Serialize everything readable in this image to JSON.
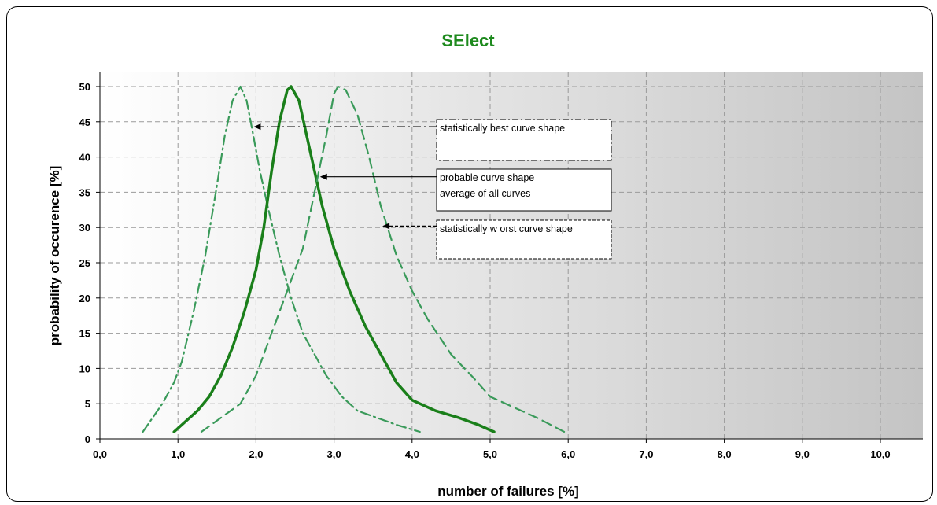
{
  "chart_data": {
    "type": "line",
    "title": "SElect",
    "title_color": "#1e8a1e",
    "xlabel": "number of failures [%]",
    "ylabel": "probability of occurence [%]",
    "xlim": [
      0,
      10.5
    ],
    "ylim": [
      0,
      52
    ],
    "x_ticks": [
      "0,0",
      "1,0",
      "2,0",
      "3,0",
      "4,0",
      "5,0",
      "6,0",
      "7,0",
      "8,0",
      "9,0",
      "10,0"
    ],
    "y_ticks": [
      "0",
      "5",
      "10",
      "15",
      "20",
      "25",
      "30",
      "35",
      "40",
      "45",
      "50"
    ],
    "grid": true,
    "series": [
      {
        "style": "dash-dot",
        "color": "#3a9a5a",
        "points": [
          [
            0.55,
            1
          ],
          [
            0.8,
            5
          ],
          [
            0.95,
            8
          ],
          [
            1.05,
            11
          ],
          [
            1.2,
            18
          ],
          [
            1.35,
            26
          ],
          [
            1.5,
            36
          ],
          [
            1.6,
            43
          ],
          [
            1.7,
            48
          ],
          [
            1.8,
            50
          ],
          [
            1.88,
            48
          ],
          [
            1.95,
            44
          ],
          [
            2.05,
            38
          ],
          [
            2.15,
            33
          ],
          [
            2.3,
            26
          ],
          [
            2.45,
            20
          ],
          [
            2.6,
            15
          ],
          [
            2.75,
            12
          ],
          [
            2.9,
            9
          ],
          [
            3.1,
            6
          ],
          [
            3.3,
            4
          ],
          [
            3.55,
            3
          ],
          [
            3.8,
            2
          ],
          [
            4.1,
            1
          ]
        ]
      },
      {
        "style": "solid",
        "color": "#1a7f1a",
        "points": [
          [
            0.95,
            1
          ],
          [
            1.1,
            2.5
          ],
          [
            1.25,
            4
          ],
          [
            1.4,
            6
          ],
          [
            1.55,
            9
          ],
          [
            1.7,
            13
          ],
          [
            1.85,
            18
          ],
          [
            2.0,
            24
          ],
          [
            2.1,
            30
          ],
          [
            2.2,
            38
          ],
          [
            2.3,
            45
          ],
          [
            2.4,
            49.5
          ],
          [
            2.45,
            50
          ],
          [
            2.55,
            48
          ],
          [
            2.65,
            43
          ],
          [
            2.75,
            38
          ],
          [
            2.85,
            33
          ],
          [
            3.0,
            27
          ],
          [
            3.2,
            21
          ],
          [
            3.4,
            16
          ],
          [
            3.6,
            12
          ],
          [
            3.8,
            8
          ],
          [
            4.0,
            5.5
          ],
          [
            4.3,
            4
          ],
          [
            4.6,
            3
          ],
          [
            4.85,
            2
          ],
          [
            5.05,
            1
          ]
        ]
      },
      {
        "style": "dash",
        "color": "#3a9a5a",
        "points": [
          [
            1.3,
            1
          ],
          [
            1.55,
            3
          ],
          [
            1.8,
            5
          ],
          [
            2.0,
            9
          ],
          [
            2.2,
            15
          ],
          [
            2.4,
            21
          ],
          [
            2.6,
            27
          ],
          [
            2.75,
            35
          ],
          [
            2.9,
            43
          ],
          [
            3.0,
            49
          ],
          [
            3.05,
            50
          ],
          [
            3.15,
            49.5
          ],
          [
            3.3,
            46
          ],
          [
            3.45,
            40
          ],
          [
            3.6,
            33
          ],
          [
            3.8,
            26
          ],
          [
            4.0,
            21
          ],
          [
            4.2,
            17
          ],
          [
            4.5,
            12
          ],
          [
            4.8,
            8.5
          ],
          [
            5.0,
            6
          ],
          [
            5.3,
            4.5
          ],
          [
            5.6,
            3
          ],
          [
            5.95,
            1
          ]
        ]
      }
    ],
    "annotations": [
      {
        "text_lines": [
          "statistically best curve shape"
        ],
        "box_style": "dash-dot",
        "arrow_style": "dash-dot",
        "target": [
          1.97,
          44.3
        ]
      },
      {
        "text_lines": [
          "probable curve shape",
          "average of all curves"
        ],
        "box_style": "solid",
        "arrow_style": "solid",
        "target": [
          2.82,
          37.2
        ]
      },
      {
        "text_lines": [
          "statistically w orst curve shape"
        ],
        "box_style": "dash",
        "arrow_style": "dash",
        "target": [
          3.62,
          30.2
        ]
      }
    ]
  }
}
